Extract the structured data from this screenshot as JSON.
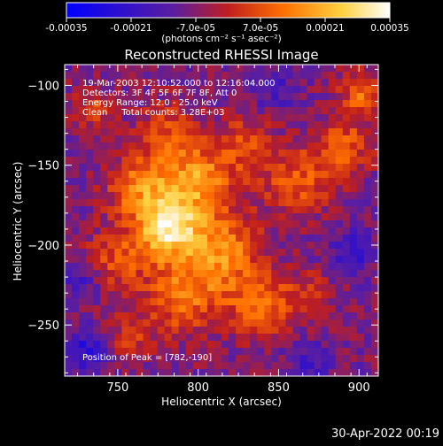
{
  "chart_data": {
    "type": "heatmap",
    "title": "Reconstructed RHESSI Image",
    "xlabel": "Heliocentric X (arcsec)",
    "ylabel": "Heliocentric Y (arcsec)",
    "xlim": [
      717,
      912
    ],
    "ylim": [
      -282,
      -87
    ],
    "x_ticks": [
      750,
      800,
      850,
      900
    ],
    "y_ticks": [
      -100,
      -150,
      -200,
      -250
    ],
    "colorbar": {
      "min": -0.00035,
      "max": 0.00035,
      "ticks": [
        "-0.00035",
        "-0.00021",
        "-7.0e-05",
        "7.0e-05",
        "0.00021",
        "0.00035"
      ],
      "unit_label": "(photons cm⁻² s⁻¹ asec⁻²)",
      "colors": [
        "#0000ff",
        "#5a1ea0",
        "#c01e1e",
        "#ff7000",
        "#ffd040",
        "#ffffff"
      ]
    },
    "annotations": [
      "19-Mar-2003 12:10:52.000 to 12:16:04.000",
      "Detectors: 3F 4F 5F 6F 7F 8F, Att 0",
      "Energy Range: 12.0 - 25.0 keV",
      "Clean     Total counts: 3.28E+03"
    ],
    "peak_label": "Position of Peak = [782,-190]",
    "peak": [
      782,
      -190
    ],
    "blobs": [
      {
        "x": 782,
        "y": -190,
        "amp": 0.00034,
        "sigma": 13
      },
      {
        "x": 800,
        "y": -160,
        "amp": 0.00024,
        "sigma": 17
      },
      {
        "x": 765,
        "y": -165,
        "amp": 0.0002,
        "sigma": 15
      },
      {
        "x": 815,
        "y": -205,
        "amp": 0.00022,
        "sigma": 16
      },
      {
        "x": 790,
        "y": -232,
        "amp": 0.0002,
        "sigma": 16
      },
      {
        "x": 750,
        "y": -210,
        "amp": 0.00014,
        "sigma": 14
      },
      {
        "x": 838,
        "y": -238,
        "amp": 0.00018,
        "sigma": 14
      },
      {
        "x": 862,
        "y": -160,
        "amp": 0.00016,
        "sigma": 15
      },
      {
        "x": 890,
        "y": -138,
        "amp": 0.00016,
        "sigma": 12
      },
      {
        "x": 902,
        "y": -105,
        "amp": 0.00018,
        "sigma": 10
      },
      {
        "x": 830,
        "y": -135,
        "amp": 0.00012,
        "sigma": 12
      },
      {
        "x": 780,
        "y": -128,
        "amp": 0.00012,
        "sigma": 12
      },
      {
        "x": 735,
        "y": -115,
        "amp": 0.00012,
        "sigma": 9
      },
      {
        "x": 758,
        "y": -258,
        "amp": 0.0001,
        "sigma": 10
      },
      {
        "x": 868,
        "y": -232,
        "amp": 8e-05,
        "sigma": 12
      },
      {
        "x": 730,
        "y": -265,
        "amp": -0.00014,
        "sigma": 10
      },
      {
        "x": 728,
        "y": -222,
        "amp": -0.00012,
        "sigma": 8
      },
      {
        "x": 895,
        "y": -205,
        "amp": -0.00012,
        "sigma": 10
      },
      {
        "x": 870,
        "y": -272,
        "amp": -0.0001,
        "sigma": 10
      },
      {
        "x": 845,
        "y": -100,
        "amp": -8e-05,
        "sigma": 12
      }
    ]
  },
  "footer": {
    "timestamp": "30-Apr-2022 00:19"
  }
}
